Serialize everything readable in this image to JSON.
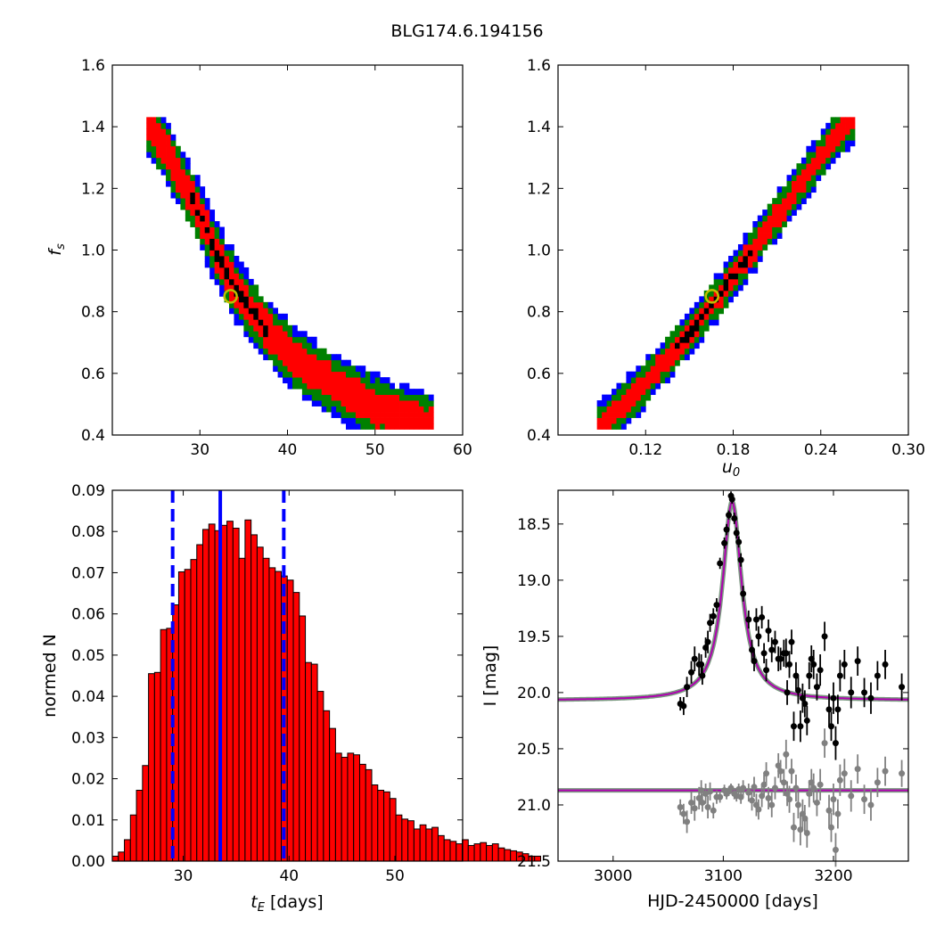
{
  "figure": {
    "title": "BLG174.6.194156"
  },
  "chart_data": [
    {
      "id": "ul",
      "type": "heatmap",
      "xlim": [
        20,
        60
      ],
      "ylim": [
        0.4,
        1.6
      ],
      "xticks": [
        "30",
        "40",
        "50",
        "60"
      ],
      "yticks": [
        "0.4",
        "0.6",
        "0.8",
        "1.0",
        "1.2",
        "1.4",
        "1.6"
      ],
      "xlabel": "",
      "ylabel": "f_s",
      "curve": {
        "x": [
          24,
          26,
          28,
          30,
          32,
          34,
          36,
          38,
          40,
          42,
          45,
          48,
          51,
          54,
          56.5
        ],
        "y": [
          1.42,
          1.33,
          1.22,
          1.12,
          0.98,
          0.88,
          0.8,
          0.73,
          0.67,
          0.62,
          0.57,
          0.52,
          0.48,
          0.45,
          0.43
        ]
      },
      "band_widths": {
        "black": 0.015,
        "red": 0.055,
        "green": 0.085,
        "blue": 0.11
      },
      "best_fit": {
        "x": 33.5,
        "y": 0.85
      },
      "colors": {
        "blue": "#0000ff",
        "green": "#008000",
        "red": "#ff0000",
        "black": "#000000",
        "marker": "#bfbf00"
      }
    },
    {
      "id": "ur",
      "type": "heatmap",
      "xlim": [
        0.06,
        0.3
      ],
      "ylim": [
        0.4,
        1.6
      ],
      "xticks": [
        "0.12",
        "0.18",
        "0.24",
        "0.30"
      ],
      "yticks": [
        "0.4",
        "0.6",
        "0.8",
        "1.0",
        "1.2",
        "1.4",
        "1.6"
      ],
      "xlabel": "u_0",
      "ylabel": "",
      "curve": {
        "x": [
          0.088,
          0.11,
          0.13,
          0.15,
          0.17,
          0.19,
          0.21,
          0.23,
          0.25,
          0.262
        ],
        "y": [
          0.43,
          0.52,
          0.62,
          0.73,
          0.85,
          0.98,
          1.11,
          1.24,
          1.37,
          1.42
        ]
      },
      "band_widths": {
        "black": 0.012,
        "red": 0.035,
        "green": 0.06,
        "blue": 0.08
      },
      "best_fit": {
        "x": 0.1655,
        "y": 0.85
      },
      "colors": {
        "blue": "#0000ff",
        "green": "#008000",
        "red": "#ff0000",
        "black": "#000000",
        "marker": "#bfbf00"
      }
    },
    {
      "id": "ll",
      "type": "bar",
      "xlim": [
        23.3,
        56.4
      ],
      "ylim": [
        0,
        0.09
      ],
      "xticks": [
        "30",
        "40",
        "50"
      ],
      "yticks": [
        "0.00",
        "0.01",
        "0.02",
        "0.03",
        "0.04",
        "0.05",
        "0.06",
        "0.07",
        "0.08",
        "0.09"
      ],
      "xlabel": "t_E [days]",
      "ylabel": "normed N",
      "bin_start": 23.3,
      "bin_width": 0.57,
      "values": [
        0.0012,
        0.0022,
        0.0052,
        0.0112,
        0.0172,
        0.0232,
        0.0455,
        0.0458,
        0.0562,
        0.0565,
        0.0622,
        0.0702,
        0.0708,
        0.0732,
        0.0768,
        0.0805,
        0.0818,
        0.0802,
        0.0815,
        0.0825,
        0.0808,
        0.0735,
        0.0828,
        0.0792,
        0.0762,
        0.0735,
        0.0712,
        0.0703,
        0.0692,
        0.0682,
        0.0652,
        0.0595,
        0.0482,
        0.0478,
        0.0412,
        0.0365,
        0.0322,
        0.0262,
        0.0252,
        0.0262,
        0.0258,
        0.0235,
        0.0222,
        0.0185,
        0.0172,
        0.0168,
        0.0152,
        0.0112,
        0.0102,
        0.0098,
        0.0078,
        0.0088,
        0.0078,
        0.0082,
        0.0062,
        0.0052,
        0.0048,
        0.0042,
        0.0052,
        0.0038,
        0.0042,
        0.0045,
        0.0038,
        0.0042,
        0.0032,
        0.0028,
        0.0025,
        0.0022,
        0.0018,
        0.0012,
        0.0012
      ],
      "median": 33.5,
      "bounds": [
        29.0,
        39.5
      ],
      "colors": {
        "bar": "#ff0000",
        "edge": "#000000",
        "line": "#0000ff"
      }
    },
    {
      "id": "lr",
      "type": "scatter",
      "xlim": [
        2950,
        3268
      ],
      "ylim": [
        21.5,
        18.2
      ],
      "xticks": [
        "3000",
        "3100",
        "3200"
      ],
      "yticks": [
        "18.5",
        "19.0",
        "19.5",
        "20.0",
        "20.5",
        "21.0",
        "21.5"
      ],
      "xlabel": "HJD-2450000 [days]",
      "ylabel": "I [mag]",
      "model": {
        "t0": 3108,
        "base": 20.07,
        "amp": 1.77,
        "width": 10.5
      },
      "baseline2": 20.87,
      "series": [
        {
          "color": "#000000",
          "points": [
            [
              3061,
              20.1,
              0.06
            ],
            [
              3064,
              20.12,
              0.08
            ],
            [
              3067,
              19.95,
              0.09
            ],
            [
              3071,
              19.82,
              0.1
            ],
            [
              3074,
              19.7,
              0.11
            ],
            [
              3078,
              19.75,
              0.1
            ],
            [
              3080,
              19.75,
              0.09
            ],
            [
              3081,
              19.85,
              0.08
            ],
            [
              3084,
              19.6,
              0.09
            ],
            [
              3086,
              19.55,
              0.1
            ],
            [
              3088,
              19.38,
              0.08
            ],
            [
              3091,
              19.32,
              0.07
            ],
            [
              3094,
              19.22,
              0.06
            ],
            [
              3097,
              18.85,
              0.05
            ],
            [
              3101,
              18.67,
              0.05
            ],
            [
              3103,
              18.55,
              0.05
            ],
            [
              3105,
              18.42,
              0.04
            ],
            [
              3107,
              18.25,
              0.04
            ],
            [
              3108,
              18.28,
              0.04
            ],
            [
              3110,
              18.45,
              0.05
            ],
            [
              3112,
              18.58,
              0.05
            ],
            [
              3114,
              18.66,
              0.05
            ],
            [
              3116,
              18.82,
              0.06
            ],
            [
              3118,
              19.12,
              0.07
            ],
            [
              3123,
              19.35,
              0.08
            ],
            [
              3126,
              19.62,
              0.09
            ],
            [
              3128,
              19.72,
              0.09
            ],
            [
              3130,
              19.35,
              0.1
            ],
            [
              3132,
              19.5,
              0.09
            ],
            [
              3135,
              19.33,
              0.1
            ],
            [
              3137,
              19.65,
              0.09
            ],
            [
              3139,
              19.8,
              0.1
            ],
            [
              3141,
              19.45,
              0.1
            ],
            [
              3144,
              19.62,
              0.11
            ],
            [
              3147,
              19.55,
              0.1
            ],
            [
              3150,
              19.7,
              0.11
            ],
            [
              3152,
              19.7,
              0.1
            ],
            [
              3155,
              19.65,
              0.12
            ],
            [
              3157,
              19.65,
              0.13
            ],
            [
              3158,
              20.0,
              0.11
            ],
            [
              3160,
              19.75,
              0.12
            ],
            [
              3162,
              19.55,
              0.11
            ],
            [
              3164,
              20.3,
              0.13
            ],
            [
              3166,
              19.85,
              0.12
            ],
            [
              3168,
              19.98,
              0.12
            ],
            [
              3170,
              20.3,
              0.14
            ],
            [
              3172,
              20.05,
              0.13
            ],
            [
              3174,
              20.1,
              0.12
            ],
            [
              3176,
              20.25,
              0.13
            ],
            [
              3178,
              19.85,
              0.12
            ],
            [
              3180,
              19.7,
              0.12
            ],
            [
              3182,
              19.75,
              0.13
            ],
            [
              3185,
              19.95,
              0.12
            ],
            [
              3188,
              19.8,
              0.14
            ],
            [
              3192,
              19.5,
              0.13
            ],
            [
              3196,
              20.15,
              0.14
            ],
            [
              3198,
              20.3,
              0.13
            ],
            [
              3200,
              20.05,
              0.14
            ],
            [
              3202,
              20.45,
              0.15
            ],
            [
              3204,
              20.15,
              0.13
            ],
            [
              3206,
              19.85,
              0.14
            ],
            [
              3210,
              19.75,
              0.13
            ],
            [
              3216,
              20.0,
              0.14
            ],
            [
              3222,
              19.72,
              0.13
            ],
            [
              3228,
              20.0,
              0.13
            ],
            [
              3234,
              20.05,
              0.14
            ],
            [
              3240,
              19.85,
              0.13
            ],
            [
              3247,
              19.75,
              0.13
            ],
            [
              3262,
              19.95,
              0.12
            ]
          ]
        },
        {
          "color": "#808080",
          "points": [
            [
              3061,
              21.02,
              0.07
            ],
            [
              3064,
              21.08,
              0.09
            ],
            [
              3067,
              21.15,
              0.1
            ],
            [
              3071,
              20.98,
              0.1
            ],
            [
              3074,
              21.03,
              0.11
            ],
            [
              3078,
              20.94,
              0.1
            ],
            [
              3080,
              20.87,
              0.09
            ],
            [
              3081,
              20.98,
              0.08
            ],
            [
              3084,
              20.9,
              0.09
            ],
            [
              3086,
              21.02,
              0.1
            ],
            [
              3088,
              20.88,
              0.08
            ],
            [
              3091,
              21.05,
              0.07
            ],
            [
              3094,
              20.93,
              0.06
            ],
            [
              3097,
              20.93,
              0.05
            ],
            [
              3101,
              20.87,
              0.05
            ],
            [
              3103,
              20.9,
              0.05
            ],
            [
              3105,
              20.88,
              0.04
            ],
            [
              3107,
              20.85,
              0.04
            ],
            [
              3110,
              20.9,
              0.05
            ],
            [
              3112,
              20.92,
              0.05
            ],
            [
              3114,
              20.86,
              0.05
            ],
            [
              3116,
              20.93,
              0.06
            ],
            [
              3118,
              20.85,
              0.07
            ],
            [
              3123,
              20.89,
              0.08
            ],
            [
              3126,
              20.96,
              0.09
            ],
            [
              3128,
              20.84,
              0.09
            ],
            [
              3130,
              21.0,
              0.1
            ],
            [
              3132,
              21.04,
              0.09
            ],
            [
              3135,
              20.92,
              0.1
            ],
            [
              3137,
              20.82,
              0.09
            ],
            [
              3139,
              20.72,
              0.1
            ],
            [
              3141,
              20.94,
              0.1
            ],
            [
              3144,
              21.0,
              0.11
            ],
            [
              3147,
              20.85,
              0.1
            ],
            [
              3150,
              20.65,
              0.11
            ],
            [
              3152,
              20.7,
              0.1
            ],
            [
              3155,
              20.8,
              0.12
            ],
            [
              3157,
              20.55,
              0.13
            ],
            [
              3158,
              20.9,
              0.11
            ],
            [
              3160,
              20.95,
              0.12
            ],
            [
              3162,
              20.7,
              0.11
            ],
            [
              3164,
              21.2,
              0.13
            ],
            [
              3166,
              20.85,
              0.12
            ],
            [
              3168,
              21.0,
              0.12
            ],
            [
              3170,
              21.22,
              0.14
            ],
            [
              3172,
              21.08,
              0.13
            ],
            [
              3174,
              21.12,
              0.12
            ],
            [
              3176,
              21.25,
              0.13
            ],
            [
              3178,
              20.9,
              0.12
            ],
            [
              3180,
              20.8,
              0.12
            ],
            [
              3182,
              20.85,
              0.13
            ],
            [
              3185,
              20.98,
              0.12
            ],
            [
              3188,
              20.82,
              0.14
            ],
            [
              3192,
              20.45,
              0.13
            ],
            [
              3196,
              21.05,
              0.14
            ],
            [
              3198,
              21.2,
              0.13
            ],
            [
              3200,
              20.95,
              0.14
            ],
            [
              3202,
              21.4,
              0.15
            ],
            [
              3204,
              21.08,
              0.13
            ],
            [
              3206,
              20.78,
              0.14
            ],
            [
              3210,
              20.72,
              0.13
            ],
            [
              3216,
              20.92,
              0.14
            ],
            [
              3222,
              20.68,
              0.13
            ],
            [
              3228,
              20.95,
              0.13
            ],
            [
              3234,
              21.0,
              0.14
            ],
            [
              3240,
              20.8,
              0.13
            ],
            [
              3247,
              20.7,
              0.13
            ],
            [
              3262,
              20.72,
              0.12
            ]
          ]
        }
      ],
      "colors": {
        "model_fill": "#7a9a80",
        "model_line": "#b000b0"
      }
    }
  ]
}
